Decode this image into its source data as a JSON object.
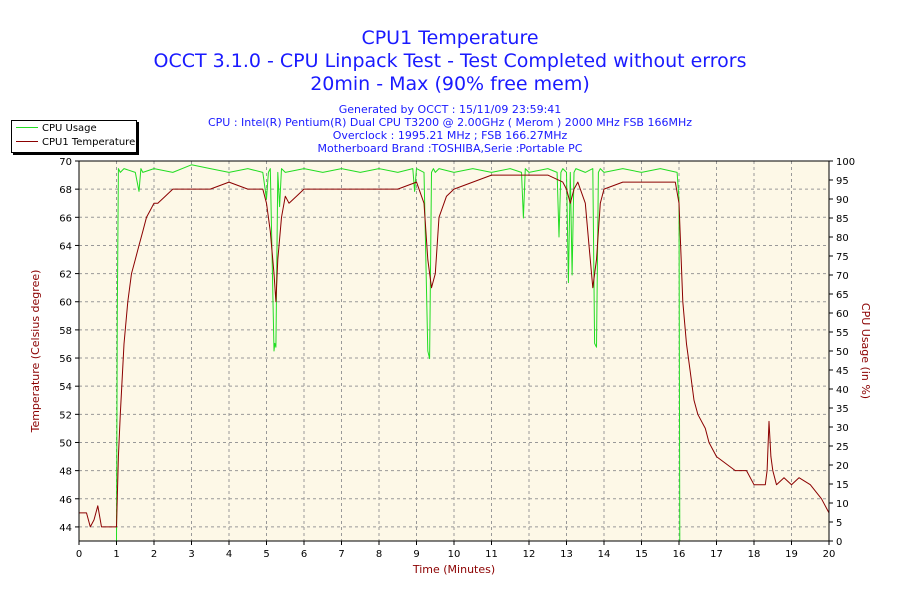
{
  "title": {
    "line1": "CPU1 Temperature",
    "line2": "OCCT 3.1.0 - CPU Linpack Test - Test Completed without errors",
    "line3": "20min - Max (90% free mem)"
  },
  "subtitle": {
    "generated": "Generated by OCCT : 15/11/09 23:59:41",
    "cpu": "CPU : Intel(R) Pentium(R) Dual CPU T3200 @ 2.00GHz ( Merom ) 2000 MHz FSB 166MHz",
    "overclock": "Overclock : 1995.21 MHz ; FSB 166.27MHz",
    "motherboard": "Motherboard Brand :TOSHIBA,Serie :Portable PC"
  },
  "legend": {
    "usage": "CPU Usage",
    "temperature": "CPU1 Temperature"
  },
  "colors": {
    "plot_bg": "#fdf8e7",
    "temp_line": "#8b0000",
    "usage_line": "#22dd22",
    "grid": "#999999",
    "axis_title": "#8b0000"
  },
  "chart_data": {
    "type": "line",
    "title": "CPU1 Temperature",
    "xlabel": "Time (Minutes)",
    "ylabel_left": "Temperature (Celsius degree)",
    "ylabel_right": "CPU Usage (in %)",
    "xlim": [
      0,
      20
    ],
    "ylim_left": [
      43,
      70
    ],
    "ylim_right": [
      0,
      100
    ],
    "x_ticks": [
      "0",
      "1",
      "2",
      "3",
      "4",
      "5",
      "6",
      "7",
      "8",
      "9",
      "10",
      "11",
      "12",
      "13",
      "14",
      "15",
      "16",
      "17",
      "18",
      "19",
      "20"
    ],
    "y_left_ticks": [
      "44",
      "46",
      "48",
      "50",
      "52",
      "54",
      "56",
      "58",
      "60",
      "62",
      "64",
      "66",
      "68",
      "70"
    ],
    "y_right_ticks": [
      "0",
      "5",
      "10",
      "15",
      "20",
      "25",
      "30",
      "35",
      "40",
      "45",
      "50",
      "55",
      "60",
      "65",
      "70",
      "75",
      "80",
      "85",
      "90",
      "95",
      "100"
    ],
    "grid": true,
    "legend_position": "top-left",
    "series": [
      {
        "name": "CPU Usage",
        "axis": "right",
        "x": [
          0,
          1.0,
          1.02,
          1.05,
          1.1,
          1.2,
          1.5,
          1.6,
          1.65,
          1.7,
          2.0,
          2.5,
          3.0,
          3.5,
          4.0,
          4.5,
          4.9,
          5.0,
          5.05,
          5.1,
          5.2,
          5.22,
          5.25,
          5.3,
          5.35,
          5.4,
          5.5,
          6.0,
          6.5,
          7.0,
          7.5,
          8.0,
          8.5,
          8.9,
          8.95,
          9.0,
          9.2,
          9.3,
          9.35,
          9.4,
          9.45,
          9.5,
          9.6,
          10.0,
          10.5,
          11.0,
          11.5,
          11.8,
          11.85,
          11.9,
          12.0,
          12.5,
          12.75,
          12.8,
          12.85,
          12.9,
          13.0,
          13.05,
          13.1,
          13.15,
          13.2,
          13.25,
          13.5,
          13.7,
          13.75,
          13.8,
          13.85,
          13.9,
          14.0,
          14.5,
          15.0,
          15.5,
          15.95,
          16.0,
          16.02,
          16.05,
          20.0
        ],
        "y": [
          0,
          0,
          60,
          98,
          97,
          98,
          97,
          92,
          98,
          97,
          98,
          97,
          99,
          98,
          97,
          98,
          97,
          90,
          97,
          98,
          50,
          52,
          51,
          97,
          88,
          98,
          97,
          98,
          97,
          98,
          97,
          98,
          97,
          98,
          92,
          98,
          97,
          50,
          48,
          97,
          98,
          97,
          98,
          97,
          98,
          97,
          98,
          97,
          85,
          98,
          97,
          98,
          97,
          80,
          97,
          98,
          97,
          68,
          97,
          70,
          97,
          98,
          97,
          98,
          52,
          51,
          97,
          98,
          97,
          98,
          97,
          98,
          97,
          90,
          0,
          0,
          0
        ]
      },
      {
        "name": "CPU1 Temperature",
        "axis": "left",
        "x": [
          0,
          0.2,
          0.3,
          0.4,
          0.5,
          0.6,
          0.8,
          1.0,
          1.05,
          1.1,
          1.2,
          1.3,
          1.4,
          1.5,
          1.6,
          1.7,
          1.8,
          1.9,
          2.0,
          2.1,
          2.3,
          2.5,
          2.7,
          3.0,
          3.5,
          4.0,
          4.5,
          4.9,
          5.0,
          5.1,
          5.2,
          5.25,
          5.3,
          5.4,
          5.5,
          5.6,
          5.8,
          6.0,
          6.5,
          7.0,
          7.5,
          8.0,
          8.5,
          9.0,
          9.2,
          9.3,
          9.4,
          9.5,
          9.6,
          9.8,
          10.0,
          10.5,
          11.0,
          11.5,
          12.0,
          12.5,
          12.9,
          13.0,
          13.1,
          13.2,
          13.3,
          13.5,
          13.6,
          13.7,
          13.8,
          13.9,
          14.0,
          14.5,
          15.0,
          15.5,
          15.9,
          16.0,
          16.1,
          16.2,
          16.3,
          16.4,
          16.5,
          16.7,
          16.8,
          17.0,
          17.5,
          17.8,
          18.0,
          18.2,
          18.3,
          18.35,
          18.4,
          18.45,
          18.5,
          18.6,
          18.8,
          19.0,
          19.2,
          19.5,
          19.8,
          20.0
        ],
        "y": [
          45,
          45,
          44,
          44.5,
          45.5,
          44,
          44,
          44,
          49,
          52,
          57,
          60,
          62,
          63,
          64,
          65,
          66,
          66.5,
          67,
          67,
          67.5,
          68,
          68,
          68,
          68,
          68.5,
          68,
          68,
          67,
          65,
          62,
          60,
          63,
          66,
          67.5,
          67,
          67.5,
          68,
          68,
          68,
          68,
          68,
          68,
          68.5,
          67,
          63,
          61,
          62,
          66,
          67.5,
          68,
          68.5,
          69,
          69,
          69,
          69,
          68.5,
          68,
          67,
          68,
          68.5,
          67,
          64,
          61,
          63,
          67,
          68,
          68.5,
          68.5,
          68.5,
          68.5,
          67,
          60,
          57,
          55,
          53,
          52,
          51,
          50,
          49,
          48,
          48,
          47,
          47,
          47,
          48,
          51.5,
          49,
          48,
          47,
          47.5,
          47,
          47.5,
          47,
          46,
          45
        ]
      }
    ]
  }
}
